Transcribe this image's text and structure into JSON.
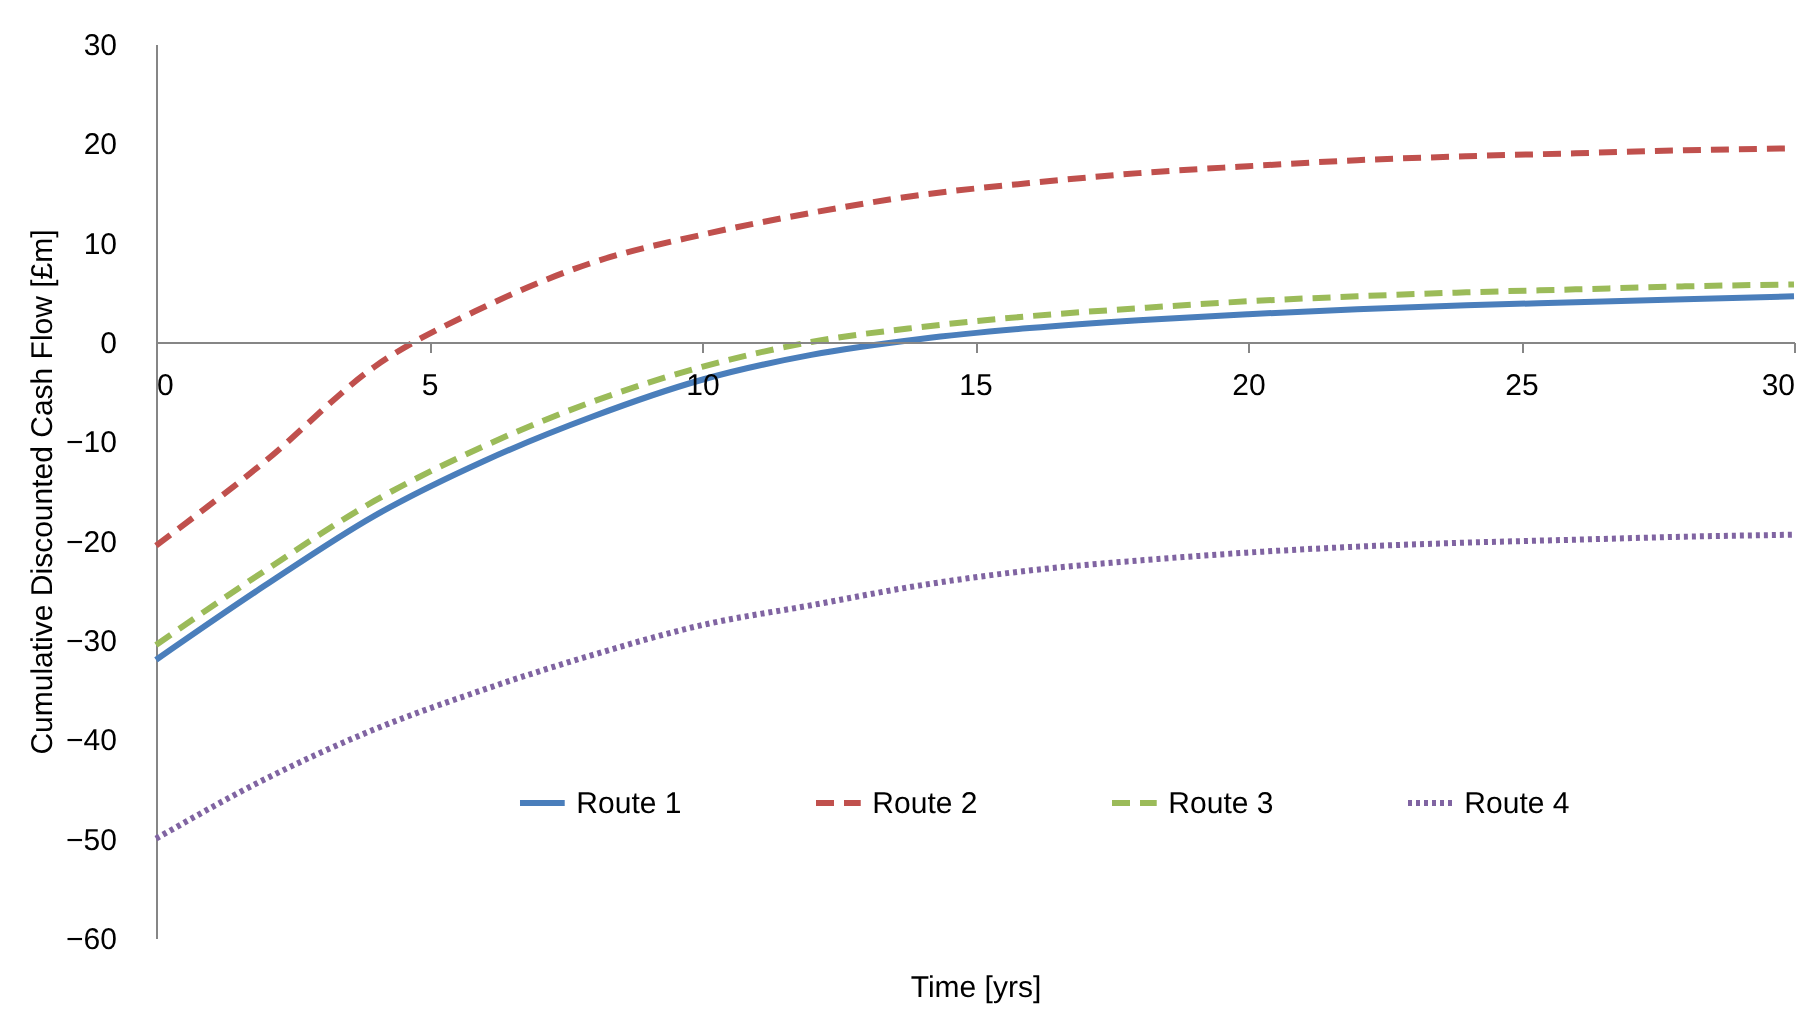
{
  "chart_data": {
    "type": "line",
    "xlabel": "Time [yrs]",
    "ylabel": "Cumulative Discounted Cash Flow [£m]",
    "x": [
      0,
      2,
      4,
      6,
      8,
      10,
      12,
      14,
      16,
      18,
      20,
      22,
      24,
      26,
      28,
      30
    ],
    "series": [
      {
        "name": "Route 1",
        "color": "#4a7ebb",
        "line_style": "solid",
        "values": [
          -32,
          -24.5,
          -17.5,
          -12,
          -7.5,
          -3.8,
          -1.3,
          0.3,
          1.4,
          2.2,
          2.8,
          3.3,
          3.7,
          4.0,
          4.3,
          4.6
        ]
      },
      {
        "name": "Route 2",
        "color": "#c0504d",
        "line_style": "dashed",
        "values": [
          -20.5,
          -12,
          -2.5,
          3.5,
          8,
          10.8,
          13,
          14.8,
          16,
          17,
          17.7,
          18.3,
          18.7,
          19,
          19.3,
          19.5
        ]
      },
      {
        "name": "Route 3",
        "color": "#9bbb59",
        "line_style": "dashed",
        "values": [
          -30.5,
          -23,
          -16,
          -10.5,
          -6,
          -2.5,
          0,
          1.5,
          2.6,
          3.4,
          4.1,
          4.6,
          5.0,
          5.3,
          5.6,
          5.8
        ]
      },
      {
        "name": "Route 4",
        "color": "#8064a2",
        "line_style": "dotted",
        "values": [
          -50,
          -44,
          -39,
          -35,
          -31.5,
          -28.5,
          -26.5,
          -24.5,
          -23,
          -22,
          -21.2,
          -20.6,
          -20.2,
          -19.9,
          -19.6,
          -19.4
        ]
      }
    ],
    "xlim": [
      0,
      30
    ],
    "xticks": [
      0,
      5,
      10,
      15,
      20,
      25,
      30
    ],
    "ylim": [
      -60,
      30
    ],
    "yticks": [
      -60,
      -50,
      -40,
      -30,
      -20,
      -10,
      0,
      10,
      20,
      30
    ],
    "grid": false,
    "legend": "bottom",
    "marker": "none"
  }
}
